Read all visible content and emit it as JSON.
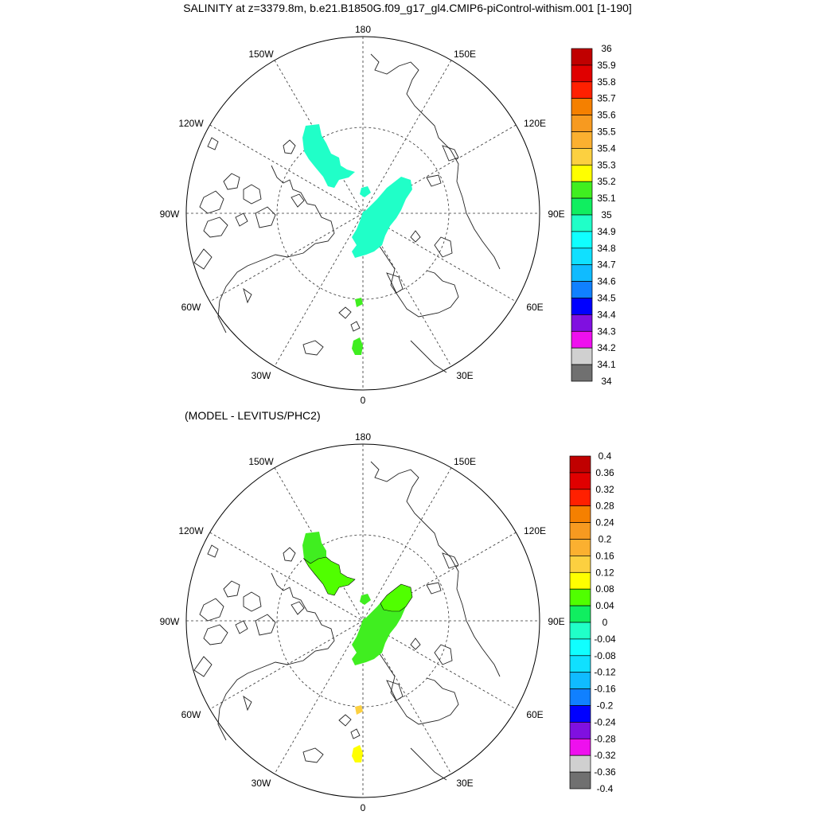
{
  "title": "SALINITY at z=3379.8m, b.e21.B1850G.f09_g17_gl4.CMIP6-piControl-withism.001 [1-190]",
  "subtitle": "(MODEL - LEVITUS/PHC2)",
  "longitude_labels": [
    "180",
    "150E",
    "120E",
    "90E",
    "60E",
    "30E",
    "0",
    "30W",
    "60W",
    "90W",
    "120W",
    "150W"
  ],
  "colorbar_top": {
    "labels": [
      "36",
      "35.9",
      "35.8",
      "35.7",
      "35.6",
      "35.5",
      "35.4",
      "35.3",
      "35.2",
      "35.1",
      "35",
      "34.9",
      "34.8",
      "34.7",
      "34.6",
      "34.5",
      "34.4",
      "34.3",
      "34.2",
      "34.1",
      "34"
    ],
    "colors": [
      "#c00000",
      "#e00000",
      "#ff2000",
      "#f58000",
      "#f79a20",
      "#fbb030",
      "#fcd040",
      "#ffff00",
      "#40ee20",
      "#10ee60",
      "#20ffc8",
      "#10ffff",
      "#10e0ff",
      "#10bbff",
      "#1080ff",
      "#0000ff",
      "#8010e0",
      "#ee10ee",
      "#d0d0d0",
      "#707070"
    ]
  },
  "colorbar_bottom": {
    "labels": [
      "0.4",
      "0.36",
      "0.32",
      "0.28",
      "0.24",
      "0.2",
      "0.16",
      "0.12",
      "0.08",
      "0.04",
      "0",
      "-0.04",
      "-0.08",
      "-0.12",
      "-0.16",
      "-0.2",
      "-0.24",
      "-0.28",
      "-0.32",
      "-0.36",
      "-0.4"
    ],
    "colors": [
      "#c00000",
      "#e00000",
      "#ff2000",
      "#f58000",
      "#f79a20",
      "#fbb030",
      "#fcd040",
      "#ffff00",
      "#50ff00",
      "#10ee60",
      "#20ffc8",
      "#10ffff",
      "#10e0ff",
      "#10bbff",
      "#1080ff",
      "#0000ff",
      "#8010e0",
      "#ee10ee",
      "#d0d0d0",
      "#707070"
    ]
  },
  "top_fill_colors": {
    "shelf": "#20ffc8",
    "main": "#20ffc8",
    "small": "#40ee20"
  },
  "bottom_fill_colors": {
    "shelf_upper": "#40ee20",
    "shelf_lower": "#50ff00",
    "main": "#40ee20",
    "main_cap": "#50ff00",
    "small": "#fcd040",
    "small_bottom": "#ffff00"
  }
}
